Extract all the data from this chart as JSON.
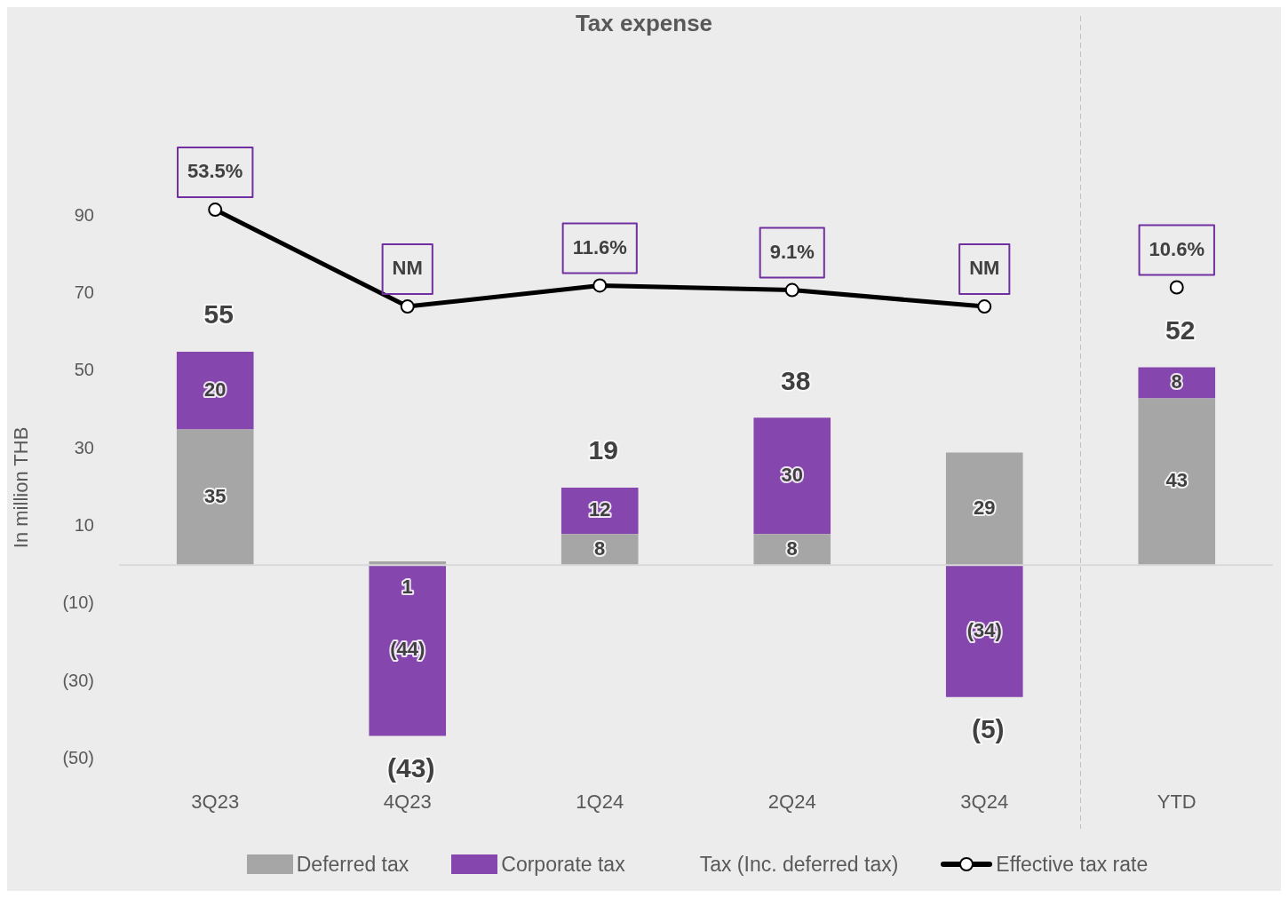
{
  "chart_data": {
    "type": "bar",
    "title": "Tax expense",
    "ylabel": "In million THB",
    "categories": [
      "3Q23",
      "4Q23",
      "1Q24",
      "2Q24",
      "3Q24",
      "YTD"
    ],
    "stacked": true,
    "series": [
      {
        "name": "Deferred tax",
        "color": "#a6a6a6",
        "values": [
          35,
          1,
          8,
          8,
          29,
          43
        ],
        "value_labels": [
          "35",
          "1",
          "8",
          "8",
          "29",
          "43"
        ]
      },
      {
        "name": "Corporate tax",
        "color": "#8547ad",
        "values": [
          20,
          -44,
          12,
          30,
          -34,
          8
        ],
        "value_labels": [
          "20",
          "(44)",
          "12",
          "30",
          "(34)",
          "8"
        ]
      },
      {
        "name": "Effective tax rate",
        "type": "line",
        "axis": "y2",
        "color": "#000000",
        "marker": "circle",
        "values": [
          53.5,
          0,
          11.6,
          9.1,
          0,
          null
        ],
        "value_labels": [
          "53.5%",
          "NM",
          "11.6%",
          "9.1%",
          "NM",
          null
        ]
      },
      {
        "type": "scatter",
        "axis": "y2",
        "color": "#000000",
        "marker": "circle",
        "x": [
          "YTD"
        ],
        "values": [
          10.6
        ],
        "value_labels": [
          "10.6%"
        ]
      }
    ],
    "totals": [
      "55",
      "(43)",
      "19",
      "38",
      "(5)",
      "52"
    ],
    "annotations": [
      "Tax (Inc. deferred tax)"
    ],
    "ylim": [
      -50,
      90
    ],
    "yticks": [
      {
        "value": -50,
        "label": "(50)"
      },
      {
        "value": -30,
        "label": "(30)"
      },
      {
        "value": -10,
        "label": "(10)"
      },
      10,
      30,
      50,
      70,
      90
    ],
    "grid": false,
    "legend": "bottom"
  }
}
